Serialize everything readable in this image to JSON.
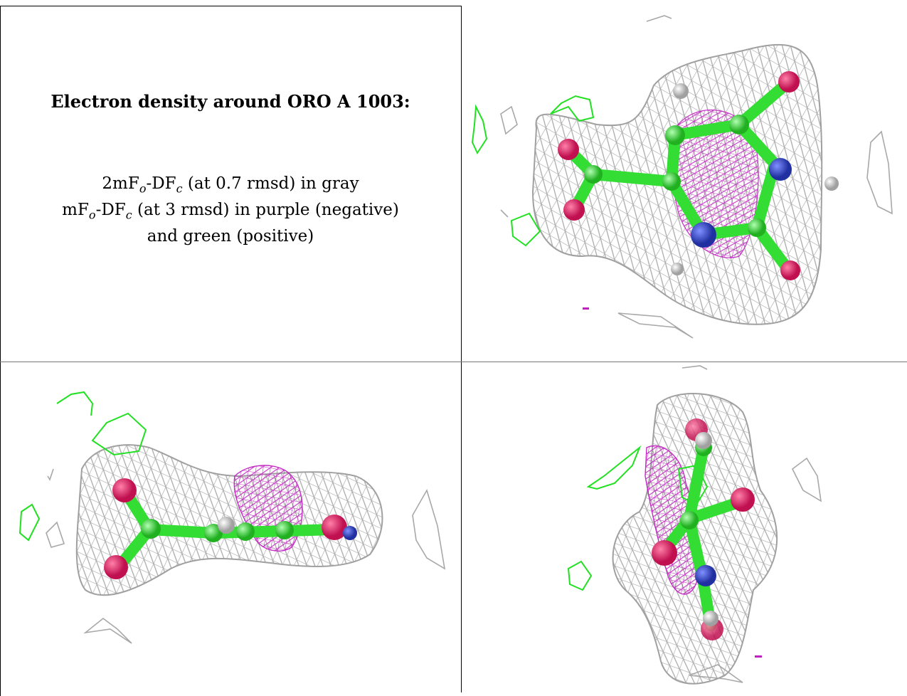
{
  "caption": {
    "title": "Electron density around ORO A 1003:",
    "line1": {
      "pre": "2mF",
      "sub1": "o",
      "mid": "-DF",
      "sub2": "c",
      "post": " (at 0.7 rmsd) in gray"
    },
    "line2": {
      "pre": "mF",
      "sub1": "o",
      "mid": "-DF",
      "sub2": "c",
      "post": " (at 3 rmsd) in purple (negative)"
    },
    "line3": "and green (positive)"
  },
  "colors": {
    "mesh_2fofc": "#a8a8a8",
    "mesh_negative": "#c020c0",
    "mesh_positive": "#22e022",
    "carbon": "#44ee44",
    "oxygen": "#e02060",
    "nitrogen": "#4050d0",
    "hydrogen": "#e8e8e8"
  },
  "panels": [
    {
      "view": "top-view"
    },
    {
      "view": "side-view"
    },
    {
      "view": "end-view"
    }
  ]
}
